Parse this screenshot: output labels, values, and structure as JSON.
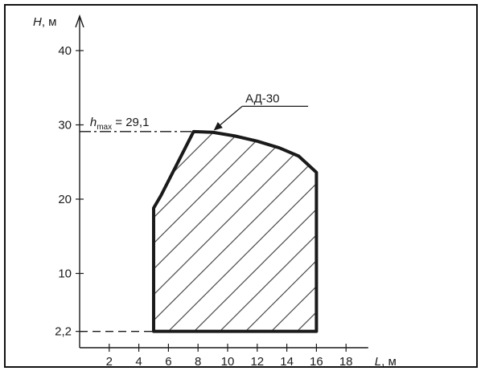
{
  "chart_data": {
    "type": "area",
    "title": "",
    "x_axis": {
      "variable": "L",
      "unit": ", м",
      "ticks": [
        2,
        4,
        6,
        8,
        10,
        12,
        14,
        16,
        18
      ],
      "range": [
        0,
        19.5
      ]
    },
    "y_axis": {
      "variable": "H",
      "unit": ", м",
      "ticks": [
        2.2,
        10,
        20,
        30,
        40
      ],
      "tick_labels": [
        "2,2",
        "10",
        "20",
        "30",
        "40"
      ],
      "range": [
        0,
        44
      ]
    },
    "series": [
      {
        "name": "АД-30",
        "fill": "hatched",
        "outline": [
          {
            "x": 5.0,
            "y": 2.2
          },
          {
            "x": 5.0,
            "y": 18.8
          },
          {
            "x": 5.5,
            "y": 20.5
          },
          {
            "x": 7.7,
            "y": 29.1
          },
          {
            "x": 9.0,
            "y": 29.0
          },
          {
            "x": 10.5,
            "y": 28.5
          },
          {
            "x": 12.0,
            "y": 27.8
          },
          {
            "x": 13.5,
            "y": 26.9
          },
          {
            "x": 14.8,
            "y": 25.8
          },
          {
            "x": 16.0,
            "y": 23.6
          },
          {
            "x": 16.0,
            "y": 2.2
          }
        ]
      }
    ],
    "reference_lines": [
      {
        "axis": "y",
        "value": 29.1,
        "style": "dash-dot",
        "x_to": 7.7
      },
      {
        "axis": "y",
        "value": 2.2,
        "style": "dashed",
        "x_to": 5.0
      }
    ],
    "annotations": {
      "hmax_label_main": "h",
      "hmax_label_sub": "max",
      "hmax_label_value": " = 29,1",
      "series_label": "АД-30",
      "leader_target": {
        "x": 9.0,
        "y": 29.0
      }
    },
    "grid": false,
    "legend": "none",
    "colors": {
      "stroke": "#1a1a1a",
      "hatch": "#4a4a4a",
      "background": "#ffffff"
    }
  }
}
